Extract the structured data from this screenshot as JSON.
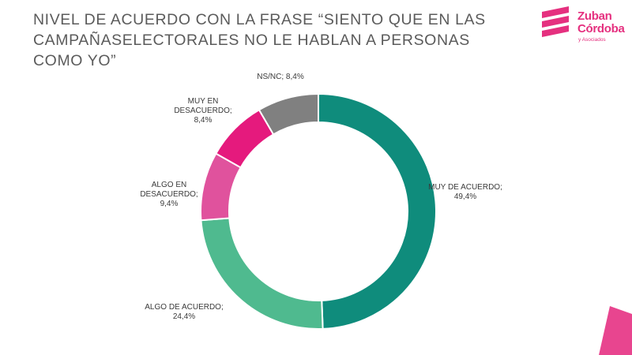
{
  "header": {
    "title": "NIVEL DE ACUERDO CON LA FRASE “SIENTO QUE EN LAS\nCAMPAÑASELECTORALES NO LE HABLAN A PERSONAS\nCOMO YO”"
  },
  "brand": {
    "name_line1": "Zuban",
    "name_line2": "Córdoba",
    "tagline": "y Asociados",
    "color": "#e5307f"
  },
  "chart_data": {
    "type": "pie",
    "style": "donut",
    "slices": [
      {
        "label": "MUY DE ACUERDO;",
        "value_label": "49,4%",
        "value": 49.4,
        "color": "#0f8c7c"
      },
      {
        "label": "ALGO DE ACUERDO;",
        "value_label": "24,4%",
        "value": 24.4,
        "color": "#4fba8f"
      },
      {
        "label": "ALGO EN DESACUERDO;",
        "value_label": "9,4%",
        "value": 9.4,
        "color": "#e0529d"
      },
      {
        "label": "MUY EN DESACUERDO;",
        "value_label": "8,4%",
        "value": 8.4,
        "color": "#e51a7d"
      },
      {
        "label": "NS/NC;",
        "value_label": "8,4%",
        "value": 8.4,
        "color": "#808080"
      }
    ]
  }
}
